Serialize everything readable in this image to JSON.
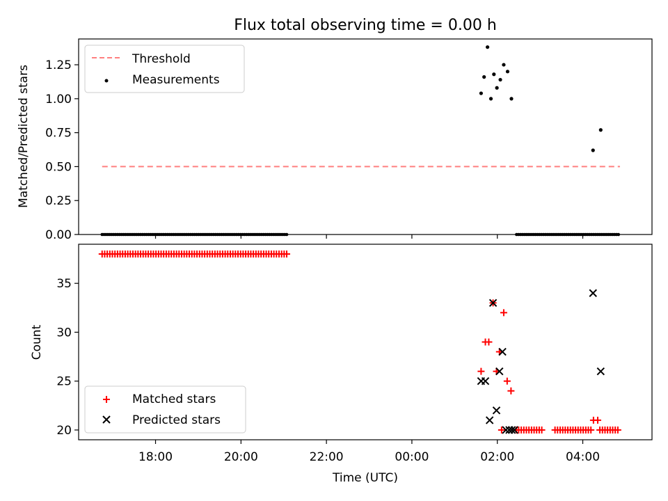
{
  "title": "Flux total observing time = 0.00 h",
  "chart_data": [
    {
      "type": "scatter",
      "panel": "top",
      "ylabel": "Matched/Predicted stars",
      "xlabel": "",
      "xlim_hours": [
        16.2,
        29.62
      ],
      "ylim": [
        0,
        1.44
      ],
      "yticks": [
        0.0,
        0.25,
        0.5,
        0.75,
        1.0,
        1.25
      ],
      "ytick_labels": [
        "0.00",
        "0.25",
        "0.50",
        "0.75",
        "1.00",
        "1.25"
      ],
      "legend_position": "top-left",
      "threshold": {
        "name": "Threshold",
        "value": 0.5,
        "x_range_hours": [
          16.75,
          28.87
        ],
        "color": "#ff7f7f"
      },
      "measurements": {
        "name": "Measurements",
        "color": "#000000",
        "points": [
          [
            25.62,
            1.04
          ],
          [
            25.69,
            1.16
          ],
          [
            25.77,
            1.38
          ],
          [
            25.85,
            1.0
          ],
          [
            25.92,
            1.18
          ],
          [
            25.99,
            1.08
          ],
          [
            26.07,
            1.14
          ],
          [
            26.15,
            1.25
          ],
          [
            26.24,
            1.2
          ],
          [
            26.33,
            1.0
          ],
          [
            28.24,
            0.62
          ],
          [
            28.42,
            0.77
          ]
        ],
        "zero_segments_hours": [
          [
            16.75,
            21.08
          ],
          [
            26.45,
            28.87
          ]
        ]
      }
    },
    {
      "type": "scatter",
      "panel": "bottom",
      "ylabel": "Count",
      "xlabel": "Time (UTC)",
      "xlim_hours": [
        16.2,
        29.62
      ],
      "ylim": [
        19.0,
        39.0
      ],
      "yticks": [
        20,
        25,
        30,
        35
      ],
      "ytick_labels": [
        "20",
        "25",
        "30",
        "35"
      ],
      "xticks_hours": [
        18,
        20,
        22,
        24,
        26,
        28
      ],
      "xtick_labels": [
        "18:00",
        "20:00",
        "22:00",
        "00:00",
        "02:00",
        "04:00"
      ],
      "legend_position": "bottom-left",
      "series": [
        {
          "name": "Matched stars",
          "marker": "+",
          "color": "#ff0000",
          "constant_segments": [
            [
              16.75,
              21.08,
              38
            ]
          ],
          "points": [
            [
              25.62,
              26
            ],
            [
              25.72,
              29
            ],
            [
              25.8,
              29
            ],
            [
              25.9,
              33
            ],
            [
              25.98,
              26
            ],
            [
              26.05,
              28
            ],
            [
              26.15,
              32
            ],
            [
              26.23,
              25
            ],
            [
              26.32,
              24
            ],
            [
              26.1,
              20
            ],
            [
              26.45,
              20
            ],
            [
              28.25,
              21
            ],
            [
              28.35,
              21
            ]
          ],
          "baseline_segments": [
            [
              26.5,
              27.05,
              20
            ],
            [
              27.35,
              28.2,
              20
            ],
            [
              28.4,
              28.87,
              20
            ]
          ]
        },
        {
          "name": "Predicted stars",
          "marker": "x",
          "color": "#000000",
          "points": [
            [
              25.62,
              25
            ],
            [
              25.72,
              25
            ],
            [
              25.82,
              21
            ],
            [
              25.9,
              33
            ],
            [
              25.98,
              22
            ],
            [
              26.05,
              26
            ],
            [
              26.12,
              28
            ],
            [
              26.2,
              20
            ],
            [
              26.28,
              20
            ],
            [
              26.34,
              20
            ],
            [
              26.4,
              20
            ],
            [
              28.24,
              34
            ],
            [
              28.42,
              26
            ]
          ]
        }
      ]
    }
  ]
}
